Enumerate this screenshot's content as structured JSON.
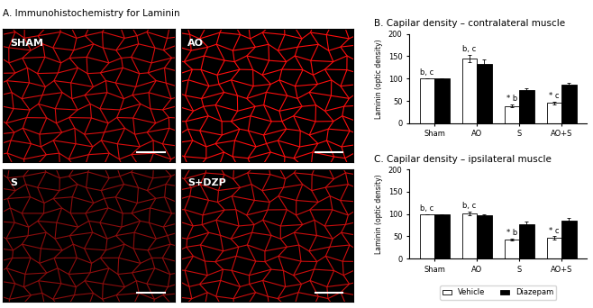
{
  "images": {
    "title": "A. Immunohistochemistry for Laminin",
    "panels": [
      "SHAM",
      "AO",
      "S",
      "S+DZP"
    ]
  },
  "chart_data": [
    {
      "type": "bar",
      "title": "B. Capilar density – contralateral muscle",
      "y_label": "Laminin (optic density)",
      "categories": [
        "Sham",
        "AO",
        "S",
        "AO+S"
      ],
      "series": [
        {
          "name": "Vehicle",
          "color": "#ffffff",
          "values": [
            100,
            145,
            38,
            45
          ],
          "error": [
            0,
            8,
            3,
            3
          ]
        },
        {
          "name": "Diazepam",
          "color": "#000000",
          "values": [
            100,
            133,
            75,
            87
          ],
          "error": [
            0,
            10,
            4,
            4
          ]
        }
      ],
      "annotations": [
        {
          "category": "Sham",
          "series": "Vehicle",
          "text": "b, c"
        },
        {
          "category": "AO",
          "series": "Vehicle",
          "text": "b, c"
        },
        {
          "category": "S",
          "series": "Vehicle",
          "text": "* b"
        },
        {
          "category": "AO+S",
          "series": "Vehicle",
          "text": "* c"
        }
      ],
      "ylim": [
        0,
        200
      ],
      "yticks": [
        0,
        50,
        100,
        150,
        200
      ],
      "grid": false
    },
    {
      "type": "bar",
      "title": "C. Capilar density – ipsilateral muscle",
      "y_label": "Laminin (optic density)",
      "categories": [
        "Sham",
        "AO",
        "S",
        "AO+S"
      ],
      "series": [
        {
          "name": "Vehicle",
          "color": "#ffffff",
          "values": [
            100,
            102,
            42,
            46
          ],
          "error": [
            0,
            4,
            2,
            4
          ]
        },
        {
          "name": "Diazepam",
          "color": "#000000",
          "values": [
            100,
            97,
            77,
            86
          ],
          "error": [
            0,
            3,
            6,
            5
          ]
        }
      ],
      "annotations": [
        {
          "category": "Sham",
          "series": "Vehicle",
          "text": "b, c"
        },
        {
          "category": "AO",
          "series": "Vehicle",
          "text": "b, c"
        },
        {
          "category": "S",
          "series": "Vehicle",
          "text": "* b"
        },
        {
          "category": "AO+S",
          "series": "Vehicle",
          "text": "* c"
        }
      ],
      "ylim": [
        0,
        200
      ],
      "yticks": [
        0,
        50,
        100,
        150,
        200
      ],
      "grid": false,
      "legend": "lower center"
    }
  ]
}
